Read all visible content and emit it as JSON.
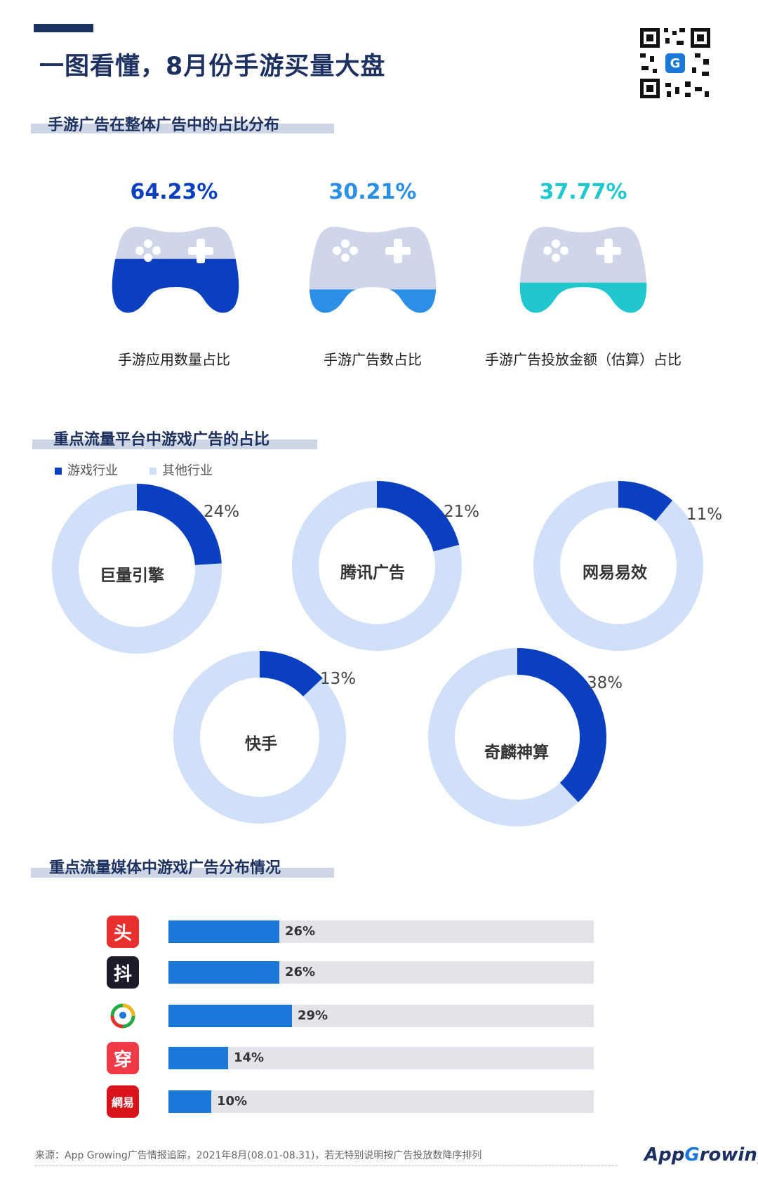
{
  "header": {
    "title": "一图看懂，8月份手游买量大盘"
  },
  "colors": {
    "navy": "#1d3160",
    "blue_dark": "#0a3fbf",
    "blue_mid": "#2b8fe6",
    "teal": "#21c7cf",
    "ring_light": "#cfe0f8",
    "bar": "#1a79d8"
  },
  "section1": {
    "title": "手游广告在整体广告中的占比分布",
    "items": [
      {
        "value": "64.23%",
        "label": "手游应用数量占比",
        "fraction": 0.6423,
        "color": "#0a3fbf"
      },
      {
        "value": "30.21%",
        "label": "手游广告数占比",
        "fraction": 0.3021,
        "color": "#2b8fe6"
      },
      {
        "value": "37.77%",
        "label": "手游广告投放金额（估算）占比",
        "fraction": 0.3777,
        "color": "#21c7cf"
      }
    ]
  },
  "section2": {
    "title": "重点流量平台中游戏广告的占比",
    "legend": [
      {
        "label": "游戏行业",
        "color": "#0a3fbf"
      },
      {
        "label": "其他行业",
        "color": "#cfe0f8"
      }
    ]
  },
  "section3": {
    "title": "重点流量媒体中游戏广告分布情况"
  },
  "chart_data": [
    {
      "type": "pie",
      "subtype": "donut",
      "series": [
        {
          "name": "游戏行业",
          "values": [
            24,
            21,
            11,
            13,
            38
          ]
        },
        {
          "name": "其他行业",
          "values": [
            76,
            79,
            89,
            87,
            62
          ]
        }
      ],
      "categories": [
        "巨量引擎",
        "腾讯广告",
        "网易易效",
        "快手",
        "奇麟神算"
      ],
      "value_labels": [
        "24%",
        "21%",
        "11%",
        "13%",
        "38%"
      ]
    },
    {
      "type": "bar",
      "orientation": "horizontal",
      "categories": [
        "头",
        "抖",
        "",
        "穿",
        "網易"
      ],
      "values": [
        26,
        26,
        29,
        14,
        10
      ],
      "value_labels": [
        "26%",
        "26%",
        "29%",
        "14%",
        "10%"
      ],
      "xlim": [
        0,
        100
      ]
    }
  ],
  "footer": {
    "source": "来源：App Growing广告情报追踪，2021年8月(08.01-08.31)，若无特别说明按广告投放数降序排列",
    "logo": "AppGrowing"
  }
}
